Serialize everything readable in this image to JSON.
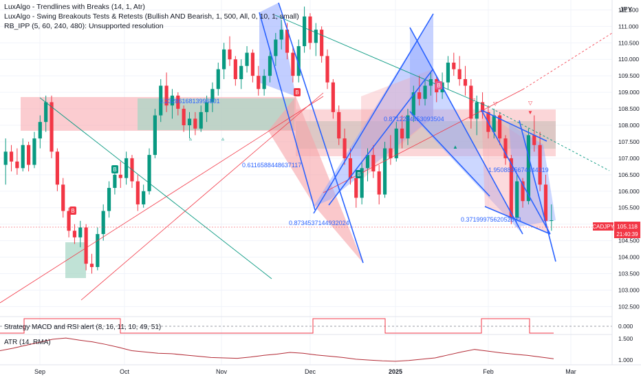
{
  "currency": "JPY",
  "symbol": "CADJPY",
  "last_price": "105.118",
  "countdown": "21:40:39",
  "indicators": [
    "LuxAlgo - Trendlines with Breaks (14, 1, Atr)",
    "LuxAlgo - Swing Breakouts Tests & Retests (Bullish AND Bearish, 1, 500, All, 0, 10, 1, small)",
    "RB_IPP (5, 60, 240, 480): Unsupported resolution"
  ],
  "strategy_legend": "Strategy MACD and RSI alert (8, 16, 11, 10, 49, 51)",
  "atr_legend": "ATR (14, RMA)",
  "price_ticks": [
    "111.500",
    "111.000",
    "110.500",
    "110.000",
    "109.500",
    "109.000",
    "108.500",
    "108.000",
    "107.500",
    "107.000",
    "106.500",
    "106.000",
    "105.500",
    "105.000",
    "104.500",
    "104.000",
    "103.500",
    "103.000",
    "102.500"
  ],
  "strategy_ticks": [
    "0.000"
  ],
  "atr_ticks": [
    "1.500",
    "1.000"
  ],
  "time_labels": [
    "Sep",
    "Oct",
    "Nov",
    "Dec",
    "2025",
    "Feb",
    "Mar"
  ],
  "annotations": [
    "0.2328616813996801",
    "0.6116588448637117",
    "0.8734537144932024",
    "0.8712284453093504",
    "0.3719997562052663",
    "1.9508855674444319"
  ],
  "badges": [
    "B",
    "B",
    "B",
    "B",
    "B"
  ],
  "colors": {
    "bull": "#089981",
    "bear": "#f23645",
    "trend": "#2962ff",
    "zone_red": "#f7a3a9",
    "zone_green": "#a5d6c5",
    "channel_blue": "#8fa6ff",
    "price_tag": "#f23645"
  },
  "chart_data": {
    "type": "candlestick",
    "y_range": [
      102.3,
      111.8
    ],
    "candles": [
      [
        106.8,
        107.6,
        106.2,
        107.2
      ],
      [
        107.2,
        107.4,
        106.6,
        106.9
      ],
      [
        106.9,
        107.3,
        106.5,
        106.7
      ],
      [
        106.7,
        107.6,
        106.6,
        107.4
      ],
      [
        107.4,
        107.5,
        106.6,
        106.8
      ],
      [
        106.8,
        107.8,
        106.7,
        107.6
      ],
      [
        107.6,
        108.3,
        107.3,
        108.1
      ],
      [
        108.1,
        108.9,
        107.8,
        108.7
      ],
      [
        108.7,
        108.9,
        107.0,
        107.2
      ],
      [
        107.2,
        107.3,
        106.0,
        106.2
      ],
      [
        106.2,
        106.4,
        105.2,
        105.4
      ],
      [
        105.4,
        105.5,
        104.6,
        104.8
      ],
      [
        104.8,
        105.0,
        104.4,
        104.6
      ],
      [
        104.6,
        105.1,
        104.3,
        104.9
      ],
      [
        104.9,
        105.0,
        103.6,
        103.8
      ],
      [
        103.8,
        104.1,
        103.5,
        103.7
      ],
      [
        103.7,
        104.9,
        103.6,
        104.7
      ],
      [
        104.7,
        105.6,
        104.5,
        105.4
      ],
      [
        105.4,
        106.3,
        105.2,
        106.1
      ],
      [
        106.1,
        106.7,
        105.9,
        106.5
      ],
      [
        106.5,
        106.9,
        106.1,
        106.4
      ],
      [
        106.4,
        107.2,
        106.2,
        107.0
      ],
      [
        107.0,
        107.1,
        106.1,
        106.3
      ],
      [
        106.3,
        106.5,
        105.4,
        105.6
      ],
      [
        105.6,
        106.2,
        105.5,
        106.0
      ],
      [
        106.0,
        107.3,
        105.9,
        107.1
      ],
      [
        107.1,
        108.5,
        107.0,
        108.3
      ],
      [
        108.3,
        109.4,
        108.1,
        109.2
      ],
      [
        109.2,
        109.6,
        108.4,
        108.6
      ],
      [
        108.6,
        109.1,
        108.2,
        108.9
      ],
      [
        108.9,
        109.0,
        108.3,
        108.5
      ],
      [
        108.5,
        108.6,
        107.8,
        108.0
      ],
      [
        108.0,
        108.4,
        107.6,
        108.2
      ],
      [
        108.2,
        108.4,
        107.7,
        107.9
      ],
      [
        107.9,
        108.6,
        107.8,
        108.4
      ],
      [
        108.4,
        108.9,
        108.1,
        108.7
      ],
      [
        108.7,
        109.3,
        108.4,
        109.1
      ],
      [
        109.1,
        109.9,
        108.9,
        109.7
      ],
      [
        109.7,
        110.5,
        109.4,
        110.3
      ],
      [
        110.3,
        110.7,
        109.8,
        110.0
      ],
      [
        110.0,
        110.1,
        109.2,
        109.4
      ],
      [
        109.4,
        110.0,
        109.1,
        109.8
      ],
      [
        109.8,
        110.4,
        109.6,
        110.2
      ],
      [
        110.2,
        110.3,
        109.3,
        109.5
      ],
      [
        109.5,
        109.8,
        108.9,
        109.1
      ],
      [
        109.1,
        109.7,
        108.9,
        109.5
      ],
      [
        109.5,
        110.3,
        109.3,
        110.1
      ],
      [
        110.1,
        110.8,
        109.8,
        110.6
      ],
      [
        110.6,
        111.2,
        110.3,
        110.9
      ],
      [
        110.9,
        111.1,
        110.0,
        110.2
      ],
      [
        110.2,
        110.4,
        109.3,
        109.5
      ],
      [
        109.5,
        110.6,
        109.3,
        110.4
      ],
      [
        110.4,
        111.6,
        110.2,
        111.3
      ],
      [
        111.3,
        111.4,
        110.3,
        110.5
      ],
      [
        110.5,
        111.1,
        110.1,
        110.9
      ],
      [
        110.9,
        111.0,
        109.9,
        110.1
      ],
      [
        110.1,
        110.3,
        109.1,
        109.3
      ],
      [
        109.3,
        109.4,
        108.2,
        108.4
      ],
      [
        108.4,
        108.6,
        107.4,
        107.6
      ],
      [
        107.6,
        107.9,
        106.8,
        107.0
      ],
      [
        107.0,
        107.3,
        106.2,
        106.4
      ],
      [
        106.4,
        106.6,
        105.5,
        105.8
      ],
      [
        105.8,
        106.9,
        105.6,
        106.7
      ],
      [
        106.7,
        107.3,
        106.3,
        107.1
      ],
      [
        107.1,
        107.4,
        106.4,
        106.6
      ],
      [
        106.6,
        106.8,
        105.6,
        105.9
      ],
      [
        105.9,
        107.5,
        105.8,
        107.3
      ],
      [
        107.3,
        107.7,
        106.8,
        107.0
      ],
      [
        107.0,
        108.1,
        106.9,
        107.9
      ],
      [
        107.9,
        108.3,
        107.3,
        107.6
      ],
      [
        107.6,
        108.5,
        107.4,
        108.3
      ],
      [
        108.3,
        109.2,
        108.1,
        109.0
      ],
      [
        109.0,
        109.5,
        108.6,
        108.8
      ],
      [
        108.8,
        109.4,
        108.6,
        109.2
      ],
      [
        109.2,
        109.6,
        108.9,
        109.4
      ],
      [
        109.4,
        109.5,
        108.7,
        109.0
      ],
      [
        109.0,
        109.6,
        108.8,
        109.3
      ],
      [
        109.3,
        110.1,
        109.1,
        109.9
      ],
      [
        109.9,
        110.2,
        109.5,
        109.7
      ],
      [
        109.7,
        110.1,
        109.2,
        109.4
      ],
      [
        109.4,
        109.8,
        108.9,
        109.2
      ],
      [
        109.2,
        109.4,
        107.9,
        108.2
      ],
      [
        108.2,
        108.9,
        107.7,
        108.7
      ],
      [
        108.7,
        109.0,
        108.2,
        108.4
      ],
      [
        108.4,
        108.6,
        107.6,
        107.8
      ],
      [
        107.8,
        108.5,
        107.6,
        108.3
      ],
      [
        108.3,
        108.4,
        107.4,
        107.6
      ],
      [
        107.6,
        107.7,
        106.8,
        107.0
      ],
      [
        107.0,
        107.1,
        105.0,
        105.2
      ],
      [
        105.2,
        106.5,
        105.1,
        106.3
      ],
      [
        106.3,
        106.4,
        105.5,
        105.7
      ],
      [
        105.7,
        107.9,
        105.6,
        107.7
      ],
      [
        107.7,
        108.3,
        107.2,
        107.4
      ],
      [
        107.4,
        107.8,
        106.0,
        106.2
      ],
      [
        106.2,
        106.5,
        104.9,
        105.1
      ],
      [
        105.1,
        105.6,
        104.8,
        105.118
      ]
    ],
    "strategy_values": [
      0,
      1,
      1,
      1,
      1,
      0,
      0,
      0,
      0,
      0,
      0,
      0,
      0,
      1,
      1,
      1,
      0,
      0,
      0,
      0,
      1,
      1,
      0,
      0
    ],
    "atr_values": [
      1.25,
      1.31,
      1.38,
      1.45,
      1.52,
      1.55,
      1.5,
      1.46,
      1.4,
      1.33,
      1.25,
      1.22,
      1.19,
      1.18,
      1.15,
      1.12,
      1.09,
      1.08,
      1.07,
      1.1,
      1.14,
      1.17,
      1.21,
      1.19,
      1.15,
      1.12,
      1.09,
      1.05,
      1.03,
      1.01,
      1.0,
      1.02,
      1.05,
      1.08,
      1.15,
      1.22,
      1.28,
      1.24,
      1.2,
      1.17,
      1.14,
      1.1,
      1.06
    ]
  }
}
